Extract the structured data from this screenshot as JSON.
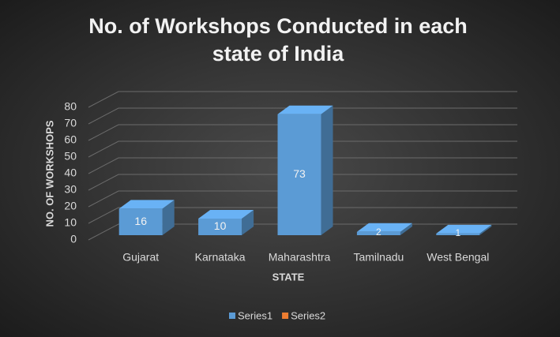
{
  "chart_data": {
    "type": "bar3d",
    "title": "No. of Workshops Conducted in each state of India",
    "title_lines": [
      "No. of Workshops Conducted in each",
      "state of India"
    ],
    "x_label": "STATE",
    "y_label": "NO. OF WORKSHOPS",
    "categories": [
      "Gujarat",
      "Karnataka",
      "Maharashtra",
      "Tamilnadu",
      "West Bengal"
    ],
    "series": [
      {
        "name": "Series1",
        "color": "#5b9bd5",
        "values": [
          16,
          10,
          73,
          2,
          1
        ]
      },
      {
        "name": "Series2",
        "color": "#ed7d31",
        "values": [
          null,
          null,
          null,
          null,
          null
        ]
      }
    ],
    "ylim": [
      0,
      80
    ],
    "yticks": [
      0,
      10,
      20,
      30,
      40,
      50,
      60,
      70,
      80
    ],
    "grid": true,
    "legend": "bottom"
  }
}
